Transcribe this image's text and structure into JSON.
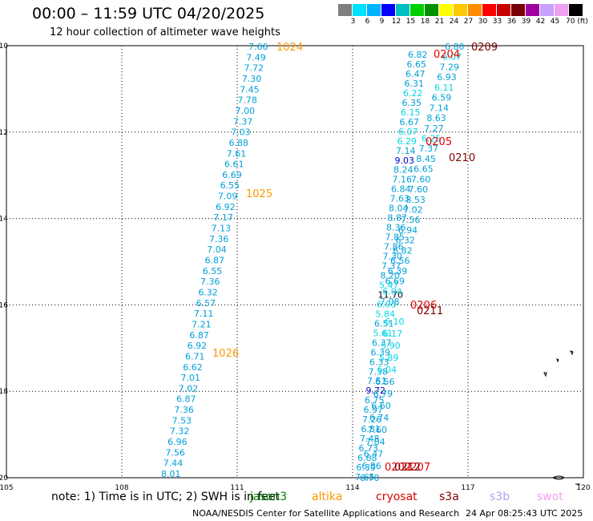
{
  "header": {
    "title": "00:00 – 11:59 UTC 04/20/2025",
    "subtitle": "12 hour collection of altimeter wave heights"
  },
  "colorbar": {
    "colors": [
      "#7f7f7f",
      "#00e0ff",
      "#00b4ff",
      "#0000ff",
      "#00bfbf",
      "#00d000",
      "#009000",
      "#ffff00",
      "#ffc800",
      "#ff8c00",
      "#ff0000",
      "#c80000",
      "#780000",
      "#a000a0",
      "#c8a0ff",
      "#f0a0f0",
      "#000000"
    ],
    "labels": [
      "3",
      "6",
      "9",
      "12",
      "15",
      "18",
      "21",
      "24",
      "27",
      "30",
      "33",
      "36",
      "39",
      "42",
      "45",
      "70 (ft)"
    ]
  },
  "axes": {
    "x_ticks": [
      "105",
      "108",
      "111",
      "114",
      "117",
      "120"
    ],
    "y_ticks": [
      "-10",
      "-12",
      "-14",
      "-16",
      "-18",
      "-20"
    ],
    "x_range": [
      105,
      120
    ],
    "y_range": [
      -20,
      -10
    ]
  },
  "passes": {
    "west": [
      "7.66",
      "7.49",
      "7.72",
      "7.30",
      "7.45",
      "7.78",
      "7.00",
      "7.37",
      "7.03",
      "6.88",
      "7.61",
      "6.61",
      "6.69",
      "6.55",
      "7.09",
      "6.92",
      "7.17",
      "7.13",
      "7.36",
      "7.04",
      "6.87",
      "6.55",
      "7.36",
      "6.32",
      "6.57",
      "7.11",
      "7.21",
      "6.87",
      "6.92",
      "6.71",
      "6.62",
      "7.01",
      "7.02",
      "6.87",
      "7.36",
      "7.53",
      "7.32",
      "6.96",
      "7.56",
      "7.44",
      "8.01"
    ],
    "middle": [
      "6.82",
      "6.65",
      "6.47",
      "6.31",
      "6.22",
      "6.35",
      "6.15",
      "6.67",
      "6.07",
      "6.29",
      "7.14",
      "9.03",
      "8.24",
      "7.16",
      "6.84",
      "7.63",
      "8.04",
      "8.87",
      "8.36",
      "7.85",
      "7.86",
      "7.30",
      "7.37",
      "8.20",
      "5.47",
      "11.70",
      "6.03",
      "5.84",
      "6.51",
      "5.61",
      "6.37",
      "6.39",
      "6.33",
      "7.38",
      "7.51",
      "9.72",
      "6.75",
      "6.97",
      "7.26",
      "6.81",
      "7.48",
      "6.73",
      "6.68",
      "6.39",
      "7.65"
    ],
    "east_upper": [
      "6.80",
      "6.07",
      "7.29",
      "6.93",
      "6.11",
      "6.59",
      "7.14",
      "8.63",
      "7.27",
      "6.25",
      "7.37",
      "8.45",
      "6.65",
      "7.60",
      "7.60",
      "8.53",
      "7.02",
      "7.56",
      "6.94",
      "6.32",
      "6.82",
      "6.56",
      "6.39",
      "6.69",
      "6.04",
      "7.08"
    ],
    "east_lower": [
      "6.10",
      "6.17",
      "5.90",
      "5.89",
      "6.04",
      "6.56",
      "6.79",
      "6.60",
      "6.74",
      "7.60",
      "7.04",
      "6.47",
      "6.86",
      "6.70"
    ]
  },
  "time_labels": [
    {
      "text": "1024",
      "color": "#ff9600"
    },
    {
      "text": "1025",
      "color": "#ff9600"
    },
    {
      "text": "1026",
      "color": "#ff9600"
    },
    {
      "text": "0204",
      "color": "#e00000"
    },
    {
      "text": "0209",
      "color": "#800000"
    },
    {
      "text": "0205",
      "color": "#e00000"
    },
    {
      "text": "0210",
      "color": "#800000"
    },
    {
      "text": "0206",
      "color": "#e00000"
    },
    {
      "text": "0211",
      "color": "#800000"
    },
    {
      "text": "0202",
      "color": "#e00000"
    },
    {
      "text": "0207",
      "color": "#e00000"
    },
    {
      "text": "0212",
      "color": "#800000"
    }
  ],
  "note": "note:  1) Time is in UTC; 2) SWH is in feet",
  "missions": [
    {
      "name": "jason3",
      "color": "#008000"
    },
    {
      "name": "altika",
      "color": "#ff9600"
    },
    {
      "name": "cryosat",
      "color": "#e00000"
    },
    {
      "name": "s3a",
      "color": "#800000"
    },
    {
      "name": "s3b",
      "color": "#b4a0f0"
    },
    {
      "name": "swot",
      "color": "#f0a0f0"
    }
  ],
  "footer": {
    "left": "NOAA/NESDIS Center for Satellite Applications and Research",
    "right": "24 Apr 08:25:43 UTC 2025"
  }
}
